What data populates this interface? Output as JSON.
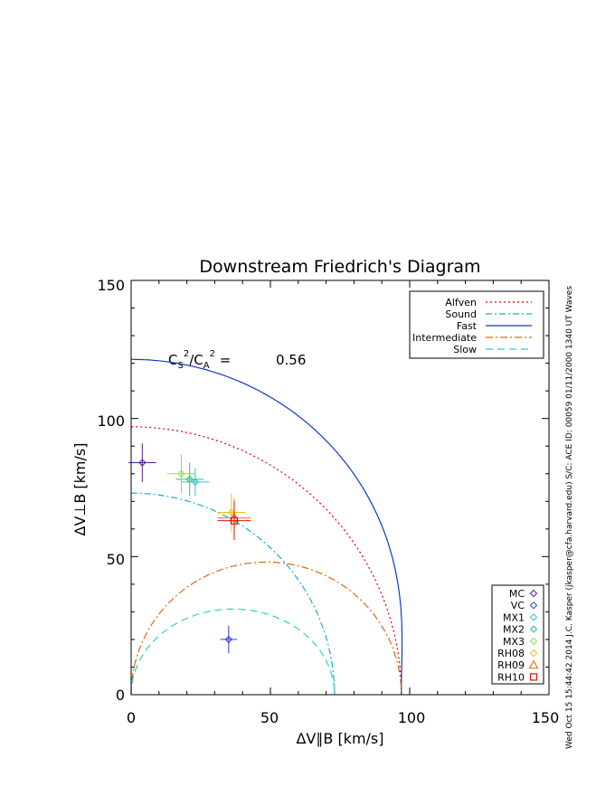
{
  "chart_data": {
    "type": "scatter",
    "title": "Downstream Friedrich's Diagram",
    "xlabel": "ΔV∥B [km/s]",
    "ylabel": "ΔV⊥B [km/s]",
    "xlim": [
      0,
      150
    ],
    "ylim": [
      0,
      150
    ],
    "xticks": [
      "0",
      "50",
      "100",
      "150"
    ],
    "yticks": [
      "0",
      "50",
      "100",
      "150"
    ],
    "annotation": {
      "ratio_label": "C_S^2/C_A^2 =",
      "ratio_value": "0.56"
    },
    "curves": [
      {
        "name": "Alfven",
        "color": "#dd0000",
        "dash": "2,3",
        "kind": "ellipse",
        "a": 97,
        "b": 97
      },
      {
        "name": "Sound",
        "color": "#1faad6",
        "dash": "7,3,2,3",
        "kind": "ellipse",
        "a": 73,
        "b": 73
      },
      {
        "name": "Fast",
        "color": "#1038c8",
        "dash": "",
        "kind": "fast",
        "va": 97,
        "cs": 73
      },
      {
        "name": "Intermediate",
        "color": "#dd6a10",
        "dash": "8,3,2,3",
        "kind": "intermediate",
        "a": 97,
        "b": 48
      },
      {
        "name": "Slow",
        "color": "#25d8c0",
        "dash": "8,5",
        "kind": "intermediate",
        "a": 73,
        "b": 31
      }
    ],
    "points": [
      {
        "name": "MC",
        "x": 4,
        "y": 84,
        "xerr": 5,
        "yerr": 7,
        "color": "#5a1e8c",
        "marker": "diamond"
      },
      {
        "name": "VC",
        "x": 35,
        "y": 20,
        "xerr": 3,
        "yerr": 5,
        "color": "#2a3cd8",
        "marker": "diamond"
      },
      {
        "name": "MX1",
        "x": 23,
        "y": 77,
        "xerr": 5,
        "yerr": 5,
        "color": "#22c4d8",
        "marker": "diamond"
      },
      {
        "name": "MX2",
        "x": 21,
        "y": 78,
        "xerr": 5,
        "yerr": 6,
        "color": "#22c488",
        "marker": "diamond"
      },
      {
        "name": "MX3",
        "x": 18,
        "y": 80,
        "xerr": 5,
        "yerr": 7,
        "color": "#88e048",
        "marker": "diamond"
      },
      {
        "name": "RH08",
        "x": 36,
        "y": 66,
        "xerr": 5,
        "yerr": 7,
        "color": "#e8c020",
        "marker": "diamond"
      },
      {
        "name": "RH09",
        "x": 37,
        "y": 64,
        "xerr": 6,
        "yerr": 7,
        "color": "#e87810",
        "marker": "triangle"
      },
      {
        "name": "RH10",
        "x": 37,
        "y": 63,
        "xerr": 6,
        "yerr": 7,
        "color": "#e01010",
        "marker": "square"
      }
    ]
  },
  "side_note": "Wed Oct 15 15:44:42 2014   J.C. Kasper (jkasper@cfa.harvard.edu)   S/C: ACE ID: 00059 01/11/2000   1340 UT Waves"
}
